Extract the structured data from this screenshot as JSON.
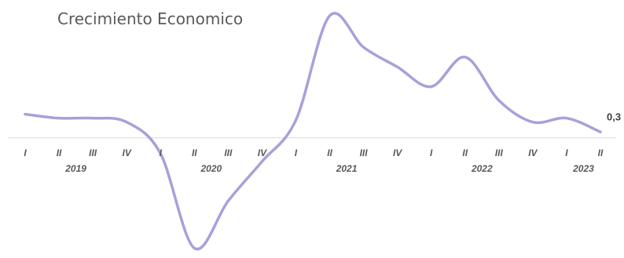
{
  "chart_data": {
    "type": "line",
    "title": "Crecimiento Economico",
    "categories": [
      {
        "quarter": "I",
        "year": "2019"
      },
      {
        "quarter": "II",
        "year": "2019"
      },
      {
        "quarter": "III",
        "year": "2019"
      },
      {
        "quarter": "IV",
        "year": "2019"
      },
      {
        "quarter": "I",
        "year": "2020"
      },
      {
        "quarter": "II",
        "year": "2020"
      },
      {
        "quarter": "III",
        "year": "2020"
      },
      {
        "quarter": "IV",
        "year": "2020"
      },
      {
        "quarter": "I",
        "year": "2021"
      },
      {
        "quarter": "II",
        "year": "2021"
      },
      {
        "quarter": "III",
        "year": "2021"
      },
      {
        "quarter": "IV",
        "year": "2021"
      },
      {
        "quarter": "I",
        "year": "2022"
      },
      {
        "quarter": "II",
        "year": "2022"
      },
      {
        "quarter": "III",
        "year": "2022"
      },
      {
        "quarter": "IV",
        "year": "2022"
      },
      {
        "quarter": "I",
        "year": "2023"
      },
      {
        "quarter": "II",
        "year": "2023"
      }
    ],
    "values": [
      1.2,
      1.0,
      1.0,
      0.8,
      -0.8,
      -5.6,
      -3.2,
      -1.2,
      0.9,
      6.2,
      4.6,
      3.6,
      2.6,
      4.1,
      1.9,
      0.8,
      1.0,
      0.3
    ],
    "data_labels": [
      {
        "index": 17,
        "text": "0,3"
      }
    ],
    "ylim": [
      -5.9,
      6.6
    ],
    "grid": false,
    "line_color": "#a7a1d9",
    "axis_color": "#d9d9d9"
  }
}
